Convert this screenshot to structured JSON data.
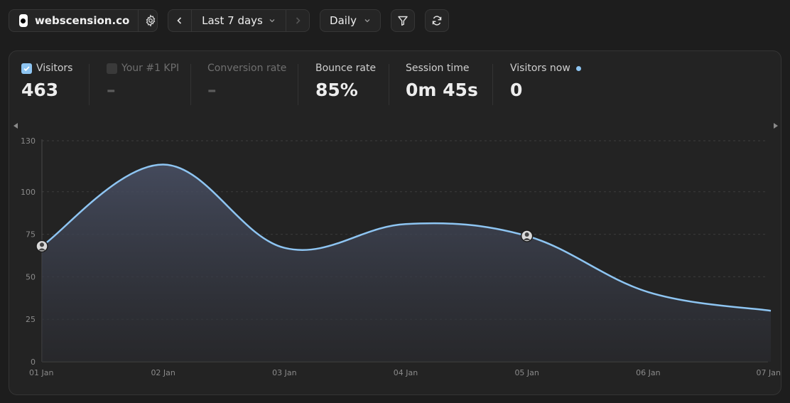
{
  "header": {
    "site_name": "webscension.co",
    "range_label": "Last 7 days",
    "interval_label": "Daily",
    "icons": {
      "settings": "gear-icon",
      "prev": "chevron-left-icon",
      "next": "chevron-right-icon",
      "range_dropdown": "chevron-down-icon",
      "interval_dropdown": "chevron-down-icon",
      "filter": "filter-icon",
      "refresh": "refresh-icon"
    }
  },
  "kpis": [
    {
      "label": "Visitors",
      "value": "463",
      "checked": true
    },
    {
      "label": "Your #1 KPI",
      "value": "–",
      "checked": false
    },
    {
      "label": "Conversion rate",
      "value": "–"
    },
    {
      "label": "Bounce rate",
      "value": "85%"
    },
    {
      "label": "Session time",
      "value": "0m 45s"
    },
    {
      "label": "Visitors now",
      "value": "0",
      "live": true
    }
  ],
  "colors": {
    "accent": "#8ec5f2",
    "background": "#1d1d1d",
    "panel": "#232323"
  },
  "chart_data": {
    "type": "area",
    "x": [
      "01 Jan",
      "02 Jan",
      "03 Jan",
      "04 Jan",
      "05 Jan",
      "06 Jan",
      "07 Jan"
    ],
    "series": [
      {
        "values": [
          68,
          116,
          67,
          81,
          74,
          41,
          30
        ]
      }
    ],
    "y_ticks": [
      0,
      25,
      50,
      75,
      100,
      130
    ],
    "ylim": [
      0,
      130
    ],
    "grid": true,
    "annotations": [
      {
        "x": "01 Jan",
        "icon": "avatar"
      },
      {
        "x": "05 Jan",
        "icon": "avatar"
      }
    ]
  }
}
